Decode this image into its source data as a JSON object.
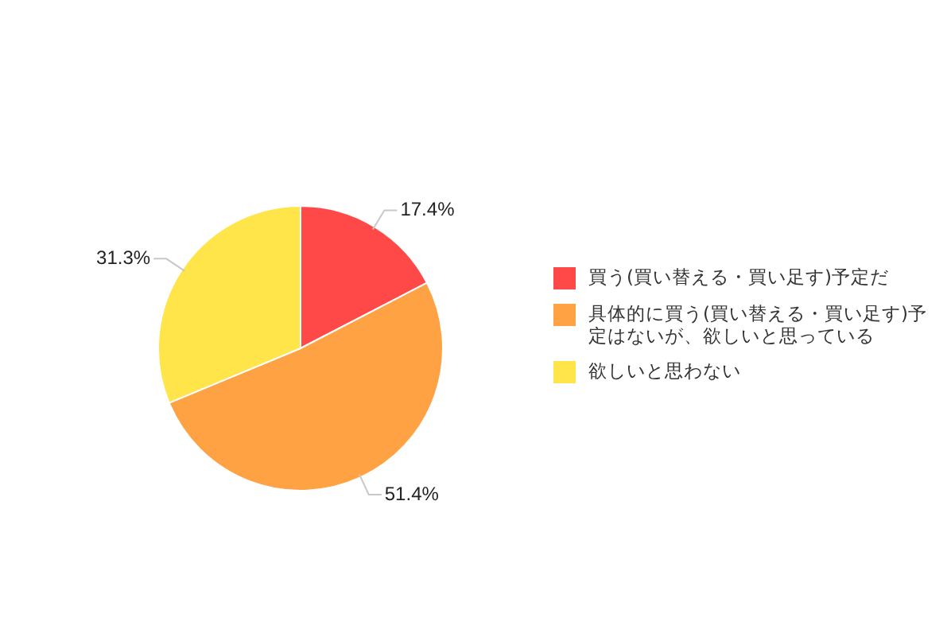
{
  "chart_data": {
    "type": "pie",
    "categories": [
      "買う(買い替える・買い足す)予定だ",
      "具体的に買う(買い替える・買い足す)予定はないが、欲しいと思っている",
      "欲しいと思わない"
    ],
    "values": [
      17.4,
      51.4,
      31.3
    ],
    "colors": [
      "#ff4848",
      "#ffa244",
      "#ffe44a"
    ],
    "value_labels": [
      "17.4%",
      "51.4%",
      "31.3%"
    ],
    "legend": "right"
  }
}
